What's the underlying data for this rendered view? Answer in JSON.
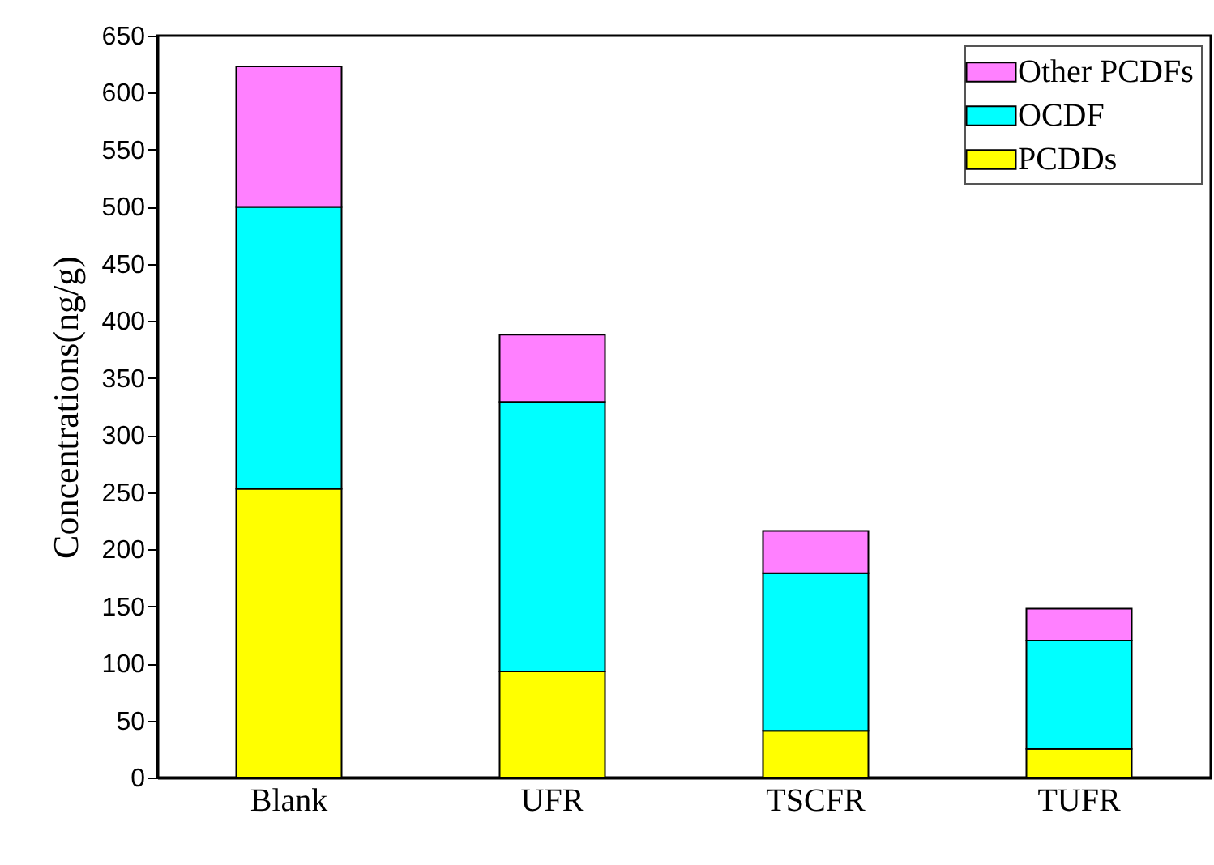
{
  "chart_data": {
    "type": "bar",
    "stacked": true,
    "ylabel": "Concentrations(ng/g)",
    "categories": [
      "Blank",
      "UFR",
      "TSCFR",
      "TUFR"
    ],
    "series": [
      {
        "name": "PCDDs",
        "color": "#ffff00",
        "values": [
          253,
          93,
          41,
          25
        ]
      },
      {
        "name": "OCDF",
        "color": "#00ffff",
        "values": [
          247,
          236,
          138,
          95
        ]
      },
      {
        "name": "Other PCDFs",
        "color": "#ff80ff",
        "values": [
          123,
          59,
          37,
          28
        ]
      }
    ],
    "ylim": [
      0,
      650
    ],
    "yticks": [
      0,
      50,
      100,
      150,
      200,
      250,
      300,
      350,
      400,
      450,
      500,
      550,
      600,
      650
    ],
    "grid": false,
    "legend": "top right"
  }
}
